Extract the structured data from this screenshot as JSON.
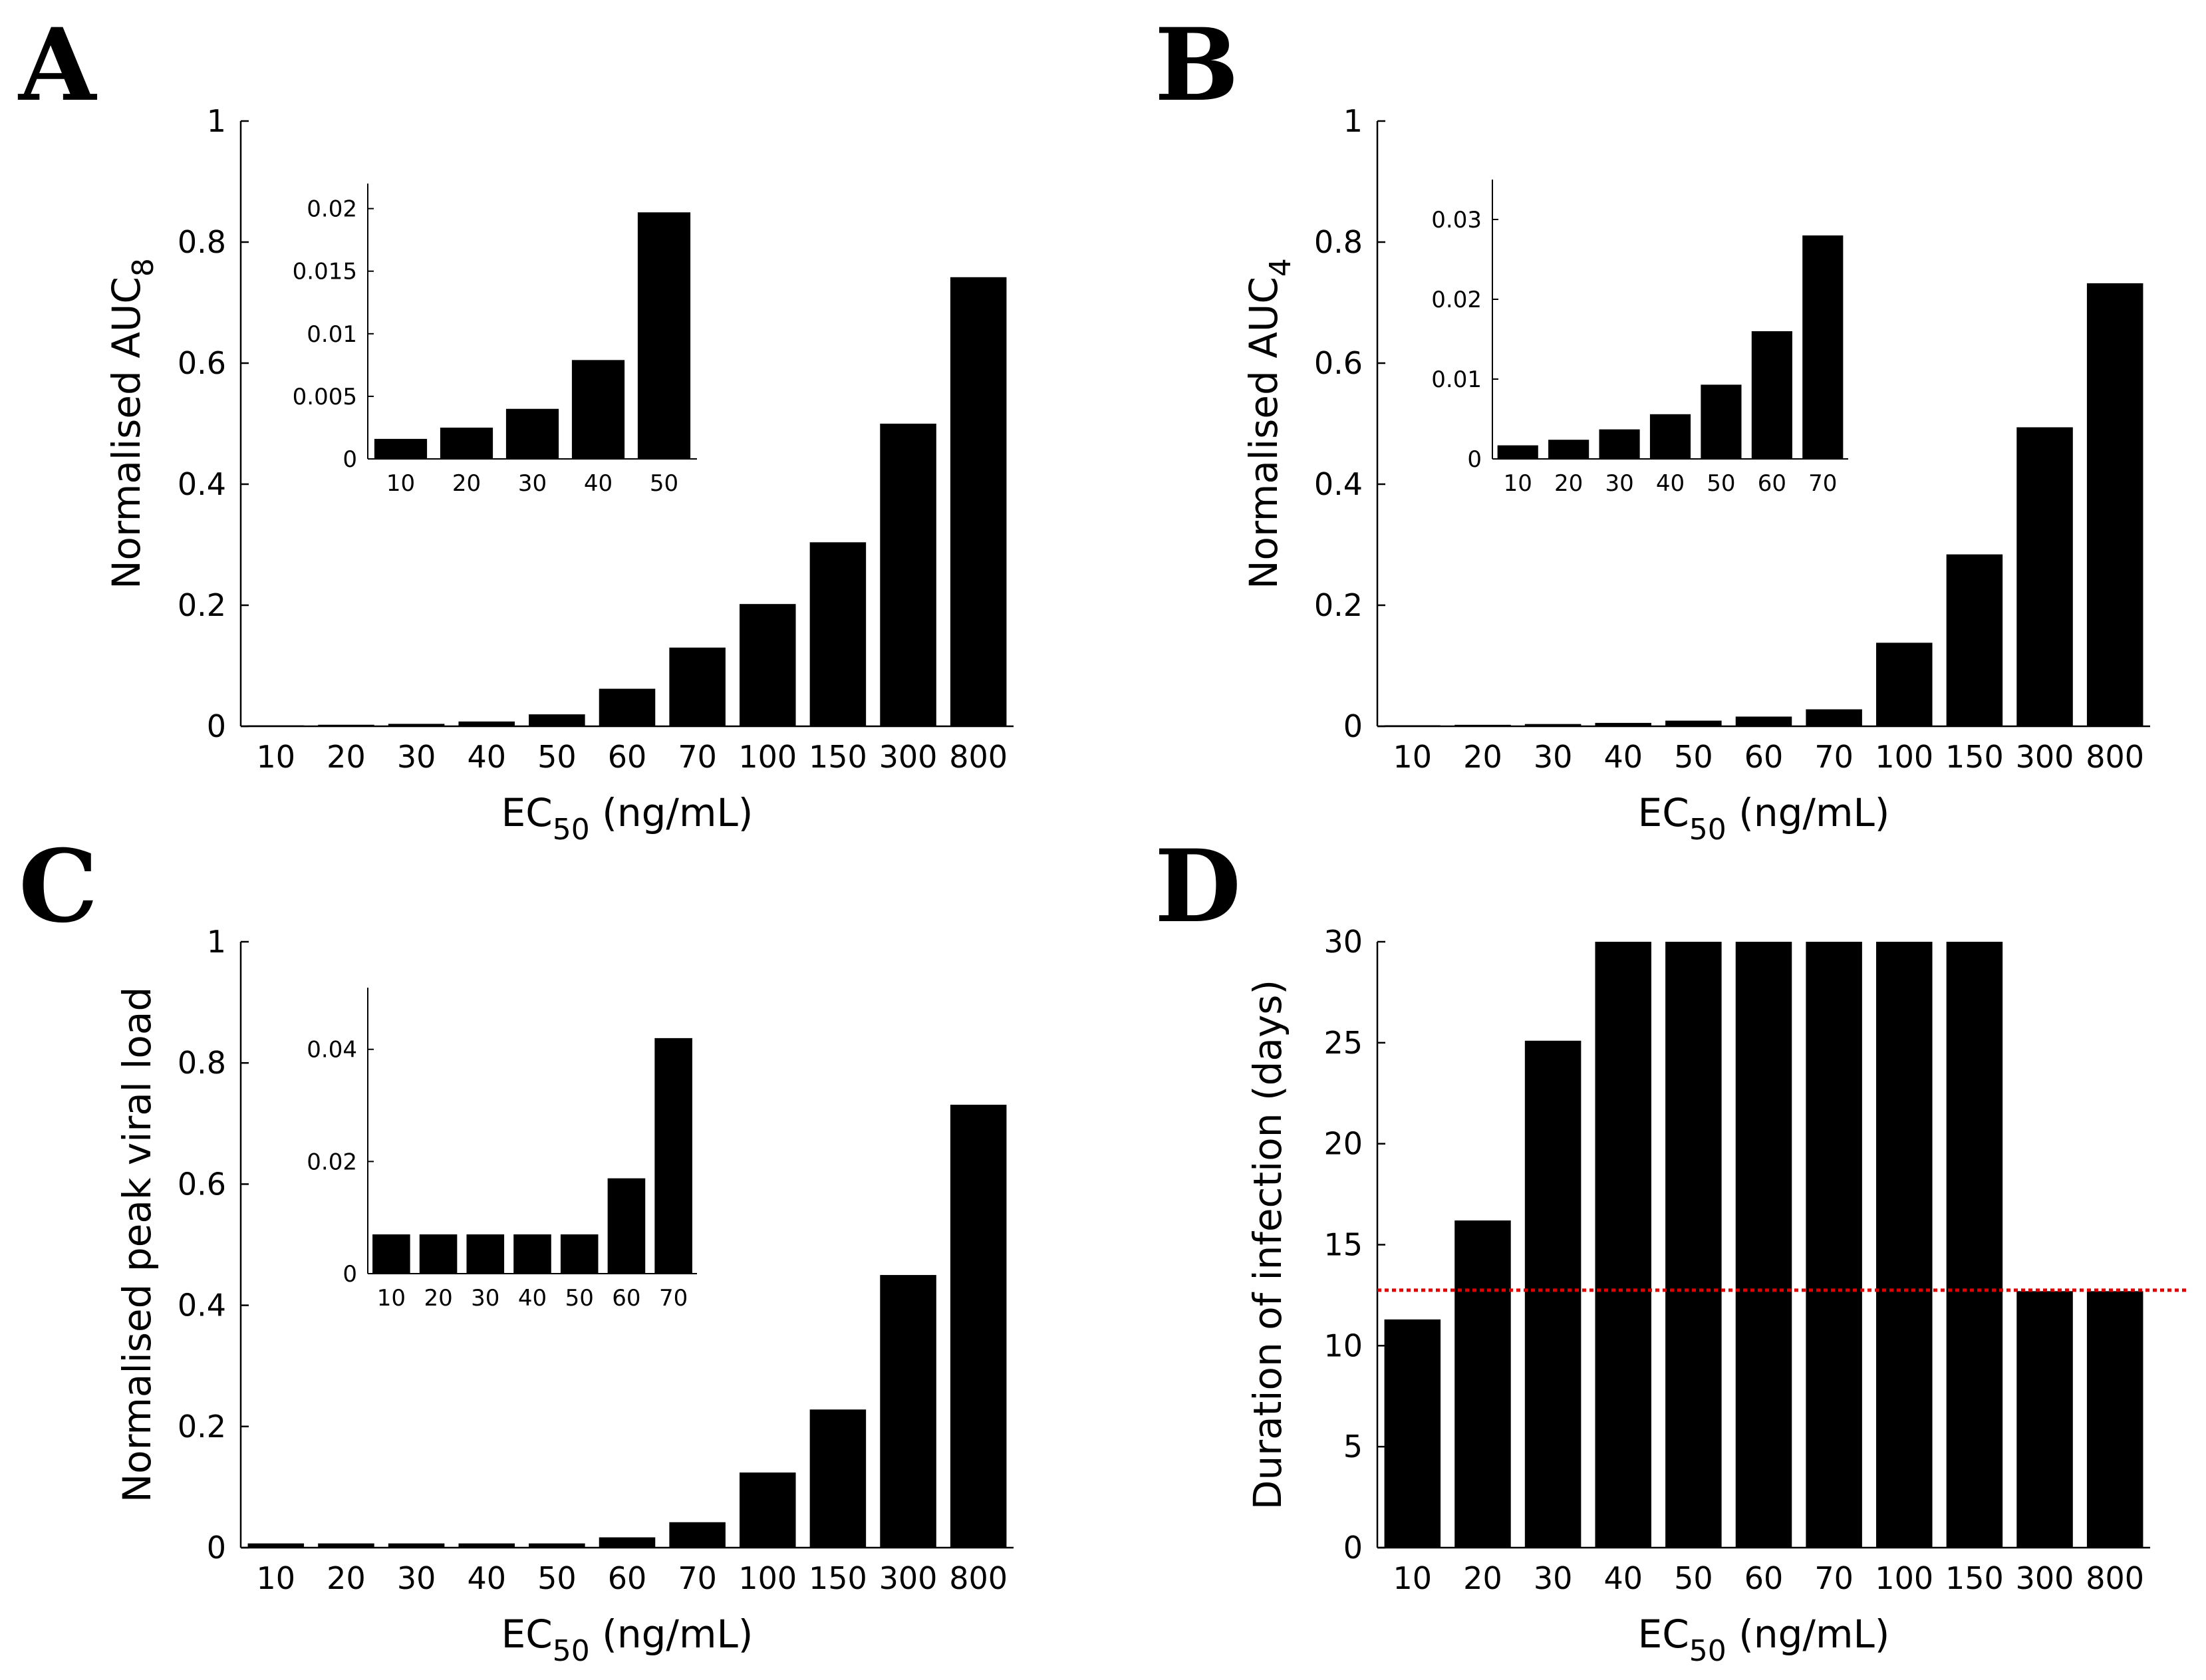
{
  "chart_data": [
    {
      "type": "bar",
      "panel": "A",
      "xlabel": "EC",
      "xlabel_sub": "50",
      "xlabel_suffix": " (ng/mL)",
      "ylabel": "Normalised AUC",
      "ylabel_sub": "8",
      "ylim": [
        0,
        1
      ],
      "yticks": [
        "0",
        "0.2",
        "0.4",
        "0.6",
        "0.8",
        "1"
      ],
      "categories": [
        "10",
        "20",
        "30",
        "40",
        "50",
        "60",
        "70",
        "100",
        "150",
        "300",
        "800"
      ],
      "values": [
        0.0016,
        0.0025,
        0.004,
        0.0079,
        0.0197,
        0.062,
        0.13,
        0.202,
        0.304,
        0.5,
        0.742
      ],
      "inset": {
        "categories": [
          "10",
          "20",
          "30",
          "40",
          "50"
        ],
        "values": [
          0.0016,
          0.0025,
          0.004,
          0.0079,
          0.0197
        ],
        "ylim": [
          0,
          0.022
        ],
        "yticks": [
          0,
          0.005,
          0.01,
          0.015,
          0.02
        ],
        "yticklabels": [
          "0",
          "0.005",
          "0.01",
          "0.015",
          "0.02"
        ]
      }
    },
    {
      "type": "bar",
      "panel": "B",
      "xlabel": "EC",
      "xlabel_sub": "50",
      "xlabel_suffix": " (ng/mL)",
      "ylabel": "Normalised AUC",
      "ylabel_sub": "4",
      "ylim": [
        0,
        1
      ],
      "yticks": [
        "0",
        "0.2",
        "0.4",
        "0.6",
        "0.8",
        "1"
      ],
      "categories": [
        "10",
        "20",
        "30",
        "40",
        "50",
        "60",
        "70",
        "100",
        "150",
        "300",
        "800"
      ],
      "values": [
        0.0017,
        0.0024,
        0.0037,
        0.0056,
        0.0093,
        0.016,
        0.028,
        0.138,
        0.284,
        0.494,
        0.732
      ],
      "inset": {
        "categories": [
          "10",
          "20",
          "30",
          "40",
          "50",
          "60",
          "70"
        ],
        "values": [
          0.0017,
          0.0024,
          0.0037,
          0.0056,
          0.0093,
          0.016,
          0.028
        ],
        "ylim": [
          0,
          0.035
        ],
        "yticks": [
          0,
          0.01,
          0.02,
          0.03
        ],
        "yticklabels": [
          "0",
          "0.01",
          "0.02",
          "0.03"
        ]
      }
    },
    {
      "type": "bar",
      "panel": "C",
      "xlabel": "EC",
      "xlabel_sub": "50",
      "xlabel_suffix": " (ng/mL)",
      "ylabel": "Normalised peak viral load",
      "ylabel_sub": "",
      "ylim": [
        0,
        1
      ],
      "yticks": [
        "0",
        "0.2",
        "0.4",
        "0.6",
        "0.8",
        "1"
      ],
      "categories": [
        "10",
        "20",
        "30",
        "40",
        "50",
        "60",
        "70",
        "100",
        "150",
        "300",
        "800"
      ],
      "values": [
        0.007,
        0.007,
        0.007,
        0.007,
        0.007,
        0.017,
        0.042,
        0.124,
        0.228,
        0.45,
        0.731
      ],
      "inset": {
        "categories": [
          "10",
          "20",
          "30",
          "40",
          "50",
          "60",
          "70"
        ],
        "values": [
          0.007,
          0.007,
          0.007,
          0.007,
          0.007,
          0.017,
          0.042
        ],
        "ylim": [
          0,
          0.051
        ],
        "yticks": [
          0,
          0.02,
          0.04
        ],
        "yticklabels": [
          "0",
          "0.02",
          "0.04"
        ]
      }
    },
    {
      "type": "bar",
      "panel": "D",
      "xlabel": "EC",
      "xlabel_sub": "50",
      "xlabel_suffix": " (ng/mL)",
      "ylabel": "Duration of infection (days)",
      "ylabel_sub": "",
      "ylim": [
        0,
        30
      ],
      "yticks": [
        "0",
        "5",
        "10",
        "15",
        "20",
        "25",
        "30"
      ],
      "categories": [
        "10",
        "20",
        "30",
        "40",
        "50",
        "60",
        "70",
        "100",
        "150",
        "300",
        "800"
      ],
      "values": [
        11.3,
        16.2,
        25.1,
        30,
        30,
        30,
        30,
        30,
        30,
        12.7,
        12.7
      ],
      "reference_line": {
        "value": 12.75,
        "color": "#e00000",
        "style": "dotted"
      }
    }
  ],
  "colors": {
    "bar": "#000000",
    "axis": "#000000",
    "reference": "#e00000"
  }
}
